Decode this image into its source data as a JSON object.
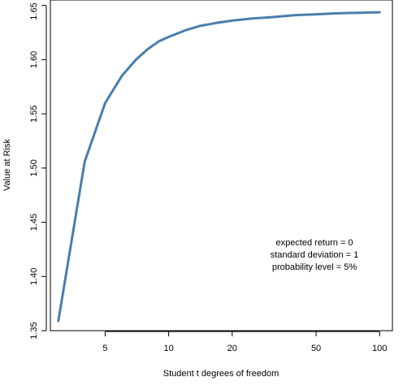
{
  "chart_data": {
    "type": "line",
    "title": "",
    "xlabel": "Student t degrees of freedom",
    "ylabel": "Value at Risk",
    "x_scale": "log",
    "xlim": [
      2.75,
      115
    ],
    "ylim": [
      1.35,
      1.655
    ],
    "grid": false,
    "series": [
      {
        "color": "#4a7eaa",
        "x": [
          3,
          4,
          5,
          6,
          7,
          8,
          9,
          10,
          12,
          14,
          17,
          20,
          25,
          30,
          40,
          50,
          60,
          70,
          80,
          90,
          100
        ],
        "y": [
          1.359,
          1.506,
          1.56,
          1.585,
          1.6,
          1.61,
          1.617,
          1.621,
          1.627,
          1.631,
          1.634,
          1.636,
          1.638,
          1.639,
          1.641,
          1.6418,
          1.6425,
          1.643,
          1.6432,
          1.6435,
          1.6437
        ]
      }
    ],
    "x_ticks": [
      {
        "value": 5,
        "label": "5"
      },
      {
        "value": 10,
        "label": "10"
      },
      {
        "value": 20,
        "label": "20"
      },
      {
        "value": 50,
        "label": "50"
      },
      {
        "value": 100,
        "label": "100"
      }
    ],
    "y_ticks": [
      {
        "value": 1.35,
        "label": "1.35"
      },
      {
        "value": 1.4,
        "label": "1.40"
      },
      {
        "value": 1.45,
        "label": "1.45"
      },
      {
        "value": 1.5,
        "label": "1.50"
      },
      {
        "value": 1.55,
        "label": "1.55"
      },
      {
        "value": 1.6,
        "label": "1.60"
      },
      {
        "value": 1.65,
        "label": "1.65"
      }
    ],
    "annotations": [
      "expected return = 0",
      "standard deviation = 1",
      "probability level = 5%"
    ]
  }
}
